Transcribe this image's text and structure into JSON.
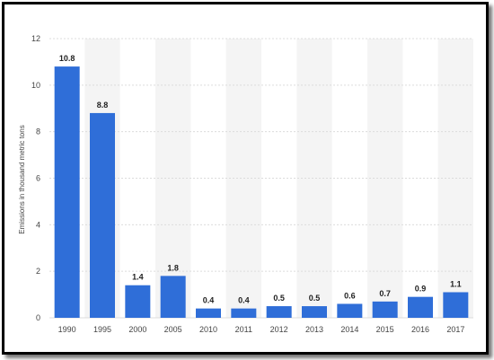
{
  "chart_data": {
    "type": "bar",
    "categories": [
      "1990",
      "1995",
      "2000",
      "2005",
      "2010",
      "2011",
      "2012",
      "2013",
      "2014",
      "2015",
      "2016",
      "2017"
    ],
    "values": [
      10.8,
      8.8,
      1.4,
      1.8,
      0.4,
      0.4,
      0.5,
      0.5,
      0.6,
      0.7,
      0.9,
      1.1
    ],
    "data_labels": [
      "10.8",
      "8.8",
      "1.4",
      "1.8",
      "0.4",
      "0.4",
      "0.5",
      "0.5",
      "0.6",
      "0.7",
      "0.9",
      "1.1"
    ],
    "yticks": [
      0,
      2,
      4,
      6,
      8,
      10,
      12
    ],
    "ylim": [
      0,
      12
    ],
    "xlabel": "",
    "ylabel": "Emissions in thousand metric tons",
    "title": "",
    "grid": true,
    "bar_color": "#2f6ed8",
    "band_color": "#f4f4f4"
  }
}
